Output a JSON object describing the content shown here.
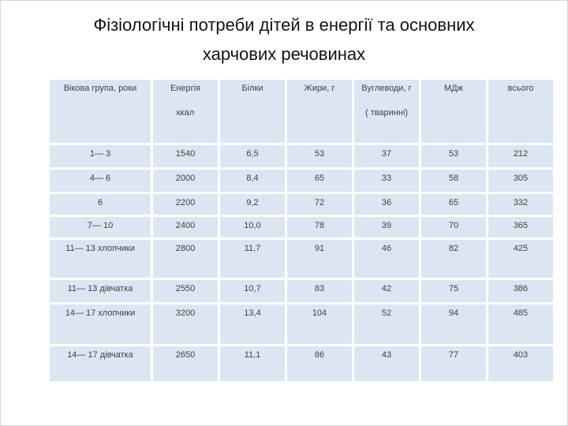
{
  "title": {
    "line1": "Фізіологічні потреби дітей в енергії та основних",
    "line2": "харчових речовинах"
  },
  "table": {
    "columns": [
      {
        "line1": "Вікова група, роки",
        "line2": ""
      },
      {
        "line1": "Енергія",
        "line2": "ккал"
      },
      {
        "line1": "Білки",
        "line2": ""
      },
      {
        "line1": "Жири, г",
        "line2": ""
      },
      {
        "line1": "Вуглеводи, г",
        "line2": "( тваринні)"
      },
      {
        "line1": "МДж",
        "line2": ""
      },
      {
        "line1": "всього",
        "line2": ""
      }
    ],
    "rows": [
      [
        "1— 3",
        "1540",
        "6,5",
        "53",
        "37",
        "53",
        "212"
      ],
      [
        "4— 6",
        "2000",
        "8,4",
        "65",
        "33",
        "58",
        "305"
      ],
      [
        "6",
        "2200",
        "9,2",
        "72",
        "36",
        "65",
        "332"
      ],
      [
        "7— 10",
        "2400",
        "10,0",
        "78",
        "39",
        "70",
        "365"
      ],
      [
        "11— 13 хлопчики",
        "2800",
        "11,7",
        "91",
        "46",
        "82",
        "425"
      ],
      [
        "11— 13 дівчатка",
        "2550",
        "10,7",
        "83",
        "42",
        "75",
        "386"
      ],
      [
        "14— 17 хлопчики",
        "3200",
        "13,4",
        "104",
        "52",
        "94",
        "485"
      ],
      [
        "14— 17 дівчатка",
        "2650",
        "11,1",
        "86",
        "43",
        "77",
        "403"
      ]
    ]
  }
}
